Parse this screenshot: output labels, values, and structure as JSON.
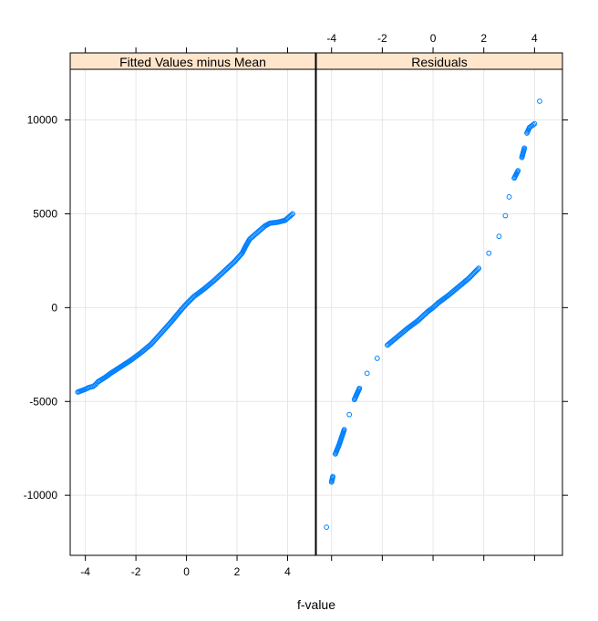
{
  "chart_data": {
    "type": "scatter",
    "xlabel": "f-value",
    "ylabel": "",
    "xlim": [
      -4.6,
      5.1
    ],
    "ylim": [
      -13200,
      12700
    ],
    "x_ticks": [
      "-4",
      "-2",
      "0",
      "2",
      "4"
    ],
    "y_ticks": [
      "10000",
      "5000",
      "0",
      "-5000",
      "-10000"
    ],
    "grid": true,
    "colors": {
      "point": "#0080ff",
      "strip": "#ffe5cc",
      "grid": "#e6e6e6",
      "frame": "#000000"
    },
    "panels": [
      {
        "name": "Fitted Values minus Mean",
        "points": [
          [
            -4.3,
            -4500
          ],
          [
            -4.0,
            -4350
          ],
          [
            -3.85,
            -4250
          ],
          [
            -3.7,
            -4200
          ],
          [
            -3.6,
            -4100
          ],
          [
            -3.5,
            -3950
          ],
          [
            -3.2,
            -3700
          ],
          [
            -3.0,
            -3500
          ],
          [
            -2.6,
            -3150
          ],
          [
            -2.2,
            -2800
          ],
          [
            -1.8,
            -2400
          ],
          [
            -1.4,
            -1950
          ],
          [
            -1.0,
            -1350
          ],
          [
            -0.6,
            -750
          ],
          [
            -0.2,
            -100
          ],
          [
            0.0,
            200
          ],
          [
            0.3,
            600
          ],
          [
            0.7,
            1000
          ],
          [
            1.1,
            1450
          ],
          [
            1.5,
            1950
          ],
          [
            1.9,
            2450
          ],
          [
            2.2,
            2900
          ],
          [
            2.35,
            3300
          ],
          [
            2.5,
            3650
          ],
          [
            2.8,
            4000
          ],
          [
            3.1,
            4350
          ],
          [
            3.3,
            4500
          ],
          [
            3.6,
            4550
          ],
          [
            3.9,
            4650
          ],
          [
            4.2,
            5000
          ]
        ]
      },
      {
        "name": "Residuals",
        "points": [
          [
            -4.2,
            -11700
          ],
          [
            -4.0,
            -9300
          ],
          [
            -3.95,
            -9000
          ],
          [
            -3.85,
            -7800
          ],
          [
            -3.7,
            -7300
          ],
          [
            -3.6,
            -6900
          ],
          [
            -3.5,
            -6500
          ],
          [
            -3.3,
            -5700
          ],
          [
            -3.1,
            -4900
          ],
          [
            -2.9,
            -4300
          ],
          [
            -2.6,
            -3500
          ],
          [
            -2.2,
            -2700
          ],
          [
            -1.8,
            -2000
          ],
          [
            -1.4,
            -1550
          ],
          [
            -1.0,
            -1100
          ],
          [
            -0.6,
            -700
          ],
          [
            -0.2,
            -200
          ],
          [
            0.0,
            0
          ],
          [
            0.2,
            250
          ],
          [
            0.6,
            650
          ],
          [
            1.0,
            1100
          ],
          [
            1.4,
            1550
          ],
          [
            1.8,
            2100
          ],
          [
            2.2,
            2900
          ],
          [
            2.6,
            3800
          ],
          [
            2.85,
            4900
          ],
          [
            3.0,
            5900
          ],
          [
            3.2,
            6900
          ],
          [
            3.35,
            7300
          ],
          [
            3.5,
            8000
          ],
          [
            3.6,
            8500
          ],
          [
            3.7,
            9300
          ],
          [
            3.8,
            9600
          ],
          [
            3.9,
            9700
          ],
          [
            4.0,
            9800
          ],
          [
            4.2,
            11000
          ]
        ]
      }
    ]
  }
}
